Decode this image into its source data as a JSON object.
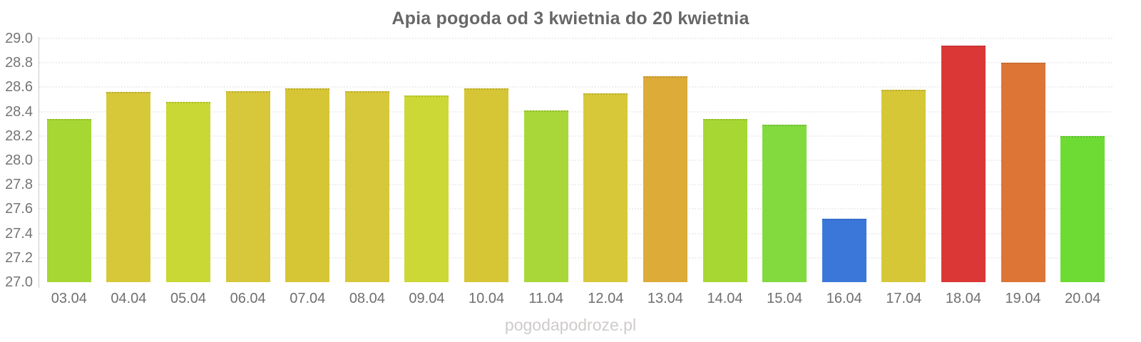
{
  "chart_data": {
    "type": "bar",
    "title": "Apia pogoda od 3 kwietnia do 20 kwietnia",
    "categories": [
      "03.04",
      "04.04",
      "05.04",
      "06.04",
      "07.04",
      "08.04",
      "09.04",
      "10.04",
      "11.04",
      "12.04",
      "13.04",
      "14.04",
      "15.04",
      "16.04",
      "17.04",
      "18.04",
      "19.04",
      "20.04"
    ],
    "values": [
      28.34,
      28.56,
      28.48,
      28.57,
      28.59,
      28.57,
      28.53,
      28.59,
      28.41,
      28.55,
      28.69,
      28.34,
      28.29,
      27.52,
      28.58,
      28.94,
      28.8,
      28.2
    ],
    "bar_colors": [
      "#a6d733",
      "#d7c83a",
      "#c9d835",
      "#d7c73a",
      "#d6c636",
      "#d7c73a",
      "#ccd836",
      "#d6c636",
      "#a9d739",
      "#d7c83a",
      "#dcab38",
      "#a6d733",
      "#82da3e",
      "#3b77d9",
      "#d6c737",
      "#dc3737",
      "#dc7536",
      "#6edb35"
    ],
    "ylim": [
      27.0,
      29.0
    ],
    "ytick_step": 0.2,
    "ytick_labels": [
      "29.0",
      "28.8",
      "28.6",
      "28.4",
      "28.2",
      "28.0",
      "27.8",
      "27.6",
      "27.4",
      "27.2",
      "27.0"
    ],
    "xlabel": "",
    "ylabel": "",
    "grid": "horizontal-dotted",
    "legend": "none"
  },
  "footer": {
    "text": "pogodapodroze.pl"
  },
  "colors": {
    "title": "#676767",
    "axis_line": "#c9c9c9",
    "gridline": "#efeeee",
    "tick_label": "#757575",
    "x_label": "#6f6f6f",
    "watermark": "#cfcbca"
  }
}
